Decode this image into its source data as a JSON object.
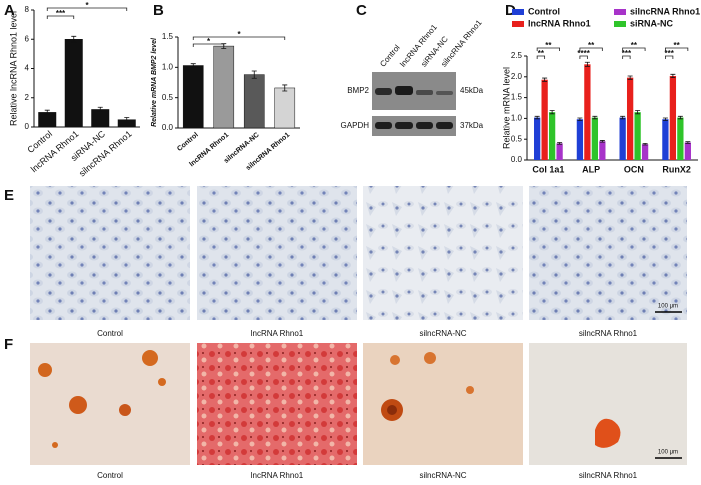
{
  "panel_labels": [
    "A",
    "B",
    "C",
    "D",
    "E",
    "F"
  ],
  "chart_data": [
    {
      "type": "bar",
      "y_label": "Relative lncRNA Rhno1 level",
      "categories": [
        "Control",
        "lncRNA Rhno1",
        "siRNA-NC",
        "silncRNA Rhno1"
      ],
      "values": [
        1.0,
        6.0,
        1.2,
        0.5
      ],
      "errors": [
        0.15,
        0.2,
        0.15,
        0.15
      ],
      "color": "#111111",
      "ylim": [
        0,
        8
      ],
      "yticks": [
        0,
        2,
        4,
        6,
        8
      ],
      "annotations": [
        "***",
        "*"
      ]
    },
    {
      "type": "bar",
      "y_label": "Relative mRNA BMP2 level",
      "categories": [
        "Control",
        "lncRNA Rhno1",
        "silncRNA-NC",
        "silncRNA Rhno1"
      ],
      "values": [
        1.03,
        1.35,
        0.88,
        0.66
      ],
      "errors": [
        0.03,
        0.04,
        0.06,
        0.05
      ],
      "colors": [
        "#111111",
        "#9a9a9a",
        "#595959",
        "#d4d4d4"
      ],
      "ylim": [
        0,
        1.5
      ],
      "yticks": [
        {
          "value": 0,
          "label": "0.0"
        },
        0.5,
        {
          "value": 1,
          "label": "1.0"
        },
        1.5
      ],
      "annotations": [
        "*",
        "*"
      ]
    },
    {
      "type": "grouped_bar",
      "y_label": "Relative mRNA level",
      "categories": [
        "Col 1a1",
        "ALP",
        "OCN",
        "RunX2"
      ],
      "series": [
        {
          "name": "Control",
          "color": "#1f3fd6",
          "values": [
            1.02,
            0.98,
            1.02,
            0.98
          ],
          "errors": [
            0.03,
            0.03,
            0.03,
            0.03
          ]
        },
        {
          "name": "lncRNA Rhno1",
          "color": "#e8201c",
          "values": [
            1.93,
            2.3,
            1.98,
            2.02
          ],
          "errors": [
            0.04,
            0.05,
            0.04,
            0.04
          ]
        },
        {
          "name": "siRNA-NC",
          "color": "#2fc42a",
          "values": [
            1.15,
            1.02,
            1.15,
            1.02
          ],
          "errors": [
            0.04,
            0.03,
            0.04,
            0.03
          ]
        },
        {
          "name": "silncRNA Rhno1",
          "color": "#a733c9",
          "values": [
            0.4,
            0.45,
            0.38,
            0.42
          ],
          "errors": [
            0.02,
            0.02,
            0.02,
            0.02
          ]
        }
      ],
      "ylim": [
        0,
        2.5
      ],
      "yticks": [
        {
          "value": 0,
          "label": "0.0"
        },
        0.5,
        {
          "value": 1,
          "label": "1.0"
        },
        1.5,
        {
          "value": 2,
          "label": "2.0"
        },
        2.5
      ],
      "annotations": [
        "**",
        "**",
        "**",
        "****",
        "**",
        "***",
        "**",
        "***"
      ]
    }
  ],
  "blot": {
    "lanes": [
      "Control",
      "lncRNA Rhno1",
      "siRNA-NC",
      "silncRNA Rhno1"
    ],
    "rows": [
      "BMP2",
      "GAPDH"
    ],
    "sizes": [
      "45kDa",
      "37kDa"
    ]
  },
  "staining_e": {
    "captions": [
      "Control",
      "lncRNA Rhno1",
      "silncRNA-NC",
      "silncRNA Rhno1"
    ]
  },
  "staining_f": {
    "captions": [
      "Control",
      "lncRNA Rhno1",
      "silncRNA-NC",
      "silncRNA Rhno1"
    ]
  },
  "scale_bar": "100 μm"
}
